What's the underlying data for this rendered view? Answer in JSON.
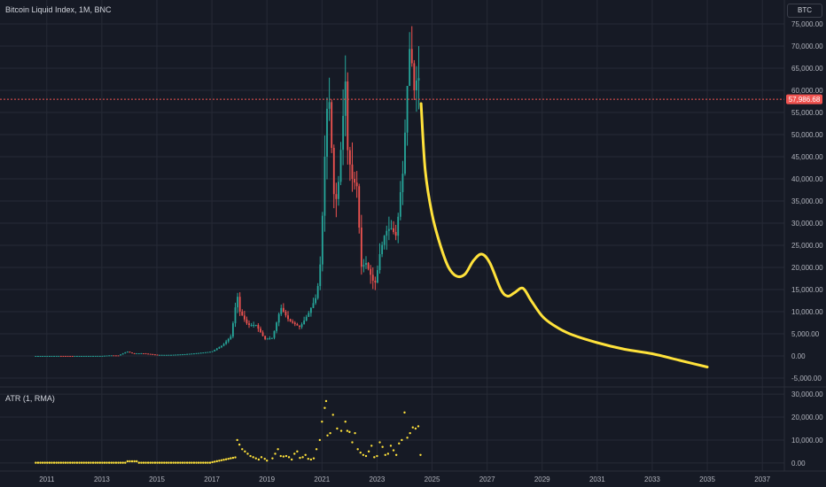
{
  "header": {
    "symbol_title": "Bitcoin Liquid Index, 1M, BNC",
    "currency": "BTC"
  },
  "indicator": {
    "label": "ATR (1, RMA)"
  },
  "price_label": "57,986.68",
  "colors": {
    "background": "#161a25",
    "up": "#26a69a",
    "down": "#ef5350",
    "projection": "#ffe23b",
    "atr": "#ffe23b",
    "price_line": "#ef5350",
    "grid": "#262a36",
    "text": "#b2b5be"
  },
  "chart_data": [
    {
      "type": "candlestick",
      "title": "Bitcoin Liquid Index, 1M, BNC",
      "ylim": [
        -6000,
        76000
      ],
      "xlim": [
        2009.3,
        2037.8
      ],
      "yticks": [
        "-5,000.00",
        "0.00",
        "5,000.00",
        "10,000.00",
        "15,000.00",
        "20,000.00",
        "25,000.00",
        "30,000.00",
        "35,000.00",
        "40,000.00",
        "45,000.00",
        "50,000.00",
        "55,000.00",
        "60,000.00",
        "65,000.00",
        "70,000.00",
        "75,000.00"
      ],
      "xticks": [
        "2011",
        "2013",
        "2015",
        "2017",
        "2019",
        "2021",
        "2023",
        "2025",
        "2027",
        "2029",
        "2031",
        "2033",
        "2035",
        "2037"
      ],
      "price_keypoints": [
        [
          2010.6,
          0.1
        ],
        [
          2011.4,
          15
        ],
        [
          2011.9,
          5
        ],
        [
          2012.5,
          10
        ],
        [
          2013.0,
          20
        ],
        [
          2013.3,
          140
        ],
        [
          2013.6,
          110
        ],
        [
          2013.92,
          1000
        ],
        [
          2014.1,
          600
        ],
        [
          2014.5,
          600
        ],
        [
          2015.0,
          250
        ],
        [
          2015.5,
          250
        ],
        [
          2016.0,
          400
        ],
        [
          2016.5,
          650
        ],
        [
          2017.0,
          1000
        ],
        [
          2017.4,
          2500
        ],
        [
          2017.7,
          4500
        ],
        [
          2017.92,
          14000
        ],
        [
          2018.0,
          10200
        ],
        [
          2018.3,
          7000
        ],
        [
          2018.6,
          7000
        ],
        [
          2018.92,
          3800
        ],
        [
          2019.2,
          4100
        ],
        [
          2019.5,
          11000
        ],
        [
          2019.8,
          8000
        ],
        [
          2020.2,
          6500
        ],
        [
          2020.5,
          9500
        ],
        [
          2020.8,
          13500
        ],
        [
          2020.92,
          19000
        ],
        [
          2021.0,
          29000
        ],
        [
          2021.1,
          45000
        ],
        [
          2021.2,
          58000
        ],
        [
          2021.3,
          57000
        ],
        [
          2021.4,
          37000
        ],
        [
          2021.55,
          35000
        ],
        [
          2021.7,
          48000
        ],
        [
          2021.85,
          62000
        ],
        [
          2021.92,
          47000
        ],
        [
          2022.1,
          40000
        ],
        [
          2022.3,
          38000
        ],
        [
          2022.4,
          20000
        ],
        [
          2022.6,
          21000
        ],
        [
          2022.85,
          17000
        ],
        [
          2022.95,
          16500
        ],
        [
          2023.1,
          23000
        ],
        [
          2023.3,
          28000
        ],
        [
          2023.5,
          29000
        ],
        [
          2023.7,
          27000
        ],
        [
          2023.85,
          37000
        ],
        [
          2023.95,
          42000
        ],
        [
          2024.1,
          61000
        ],
        [
          2024.2,
          71000
        ],
        [
          2024.35,
          60000
        ],
        [
          2024.5,
          64000
        ],
        [
          2024.58,
          57986.68
        ]
      ],
      "projection_points": [
        [
          2024.6,
          57000
        ],
        [
          2024.75,
          42000
        ],
        [
          2025.0,
          32000
        ],
        [
          2025.3,
          25000
        ],
        [
          2025.6,
          20000
        ],
        [
          2025.9,
          18000
        ],
        [
          2026.2,
          18500
        ],
        [
          2026.5,
          21500
        ],
        [
          2026.8,
          23000
        ],
        [
          2027.1,
          21000
        ],
        [
          2027.5,
          15000
        ],
        [
          2027.75,
          13500
        ],
        [
          2028.0,
          14300
        ],
        [
          2028.3,
          15300
        ],
        [
          2028.6,
          12500
        ],
        [
          2029.0,
          9000
        ],
        [
          2029.4,
          7000
        ],
        [
          2030.0,
          5000
        ],
        [
          2031.0,
          3000
        ],
        [
          2032.0,
          1500
        ],
        [
          2033.0,
          500
        ],
        [
          2034.0,
          -1000
        ],
        [
          2035.0,
          -2500
        ]
      ],
      "last_price": 57986.68
    },
    {
      "type": "scatter",
      "title": "ATR (1, RMA)",
      "ylim": [
        -2000,
        32000
      ],
      "yticks": [
        "0.00",
        "10,000.00",
        "20,000.00",
        "30,000.00"
      ],
      "points": [
        [
          2017.92,
          10000
        ],
        [
          2018.0,
          8000
        ],
        [
          2018.1,
          6000
        ],
        [
          2018.2,
          5000
        ],
        [
          2018.3,
          4000
        ],
        [
          2018.4,
          3000
        ],
        [
          2018.5,
          2500
        ],
        [
          2018.6,
          2000
        ],
        [
          2018.7,
          1500
        ],
        [
          2018.8,
          2500
        ],
        [
          2018.92,
          1800
        ],
        [
          2019.0,
          1000
        ],
        [
          2019.2,
          2000
        ],
        [
          2019.3,
          4000
        ],
        [
          2019.4,
          6000
        ],
        [
          2019.5,
          3000
        ],
        [
          2019.6,
          2800
        ],
        [
          2019.7,
          3000
        ],
        [
          2019.8,
          2500
        ],
        [
          2019.9,
          1500
        ],
        [
          2020.0,
          4000
        ],
        [
          2020.1,
          5000
        ],
        [
          2020.2,
          2200
        ],
        [
          2020.3,
          2500
        ],
        [
          2020.4,
          3500
        ],
        [
          2020.5,
          1800
        ],
        [
          2020.6,
          1500
        ],
        [
          2020.7,
          2000
        ],
        [
          2020.8,
          6000
        ],
        [
          2020.92,
          10000
        ],
        [
          2021.0,
          18000
        ],
        [
          2021.1,
          24000
        ],
        [
          2021.15,
          27000
        ],
        [
          2021.2,
          12000
        ],
        [
          2021.3,
          13000
        ],
        [
          2021.4,
          21000
        ],
        [
          2021.55,
          15000
        ],
        [
          2021.7,
          14000
        ],
        [
          2021.85,
          18000
        ],
        [
          2021.92,
          14000
        ],
        [
          2022.0,
          13500
        ],
        [
          2022.1,
          9000
        ],
        [
          2022.2,
          13000
        ],
        [
          2022.3,
          6000
        ],
        [
          2022.4,
          4500
        ],
        [
          2022.5,
          3500
        ],
        [
          2022.6,
          3000
        ],
        [
          2022.7,
          5000
        ],
        [
          2022.8,
          7500
        ],
        [
          2022.9,
          2500
        ],
        [
          2023.0,
          3000
        ],
        [
          2023.1,
          9000
        ],
        [
          2023.2,
          7000
        ],
        [
          2023.3,
          3500
        ],
        [
          2023.4,
          4000
        ],
        [
          2023.5,
          7500
        ],
        [
          2023.6,
          5500
        ],
        [
          2023.7,
          3500
        ],
        [
          2023.8,
          8500
        ],
        [
          2023.9,
          10000
        ],
        [
          2024.0,
          22000
        ],
        [
          2024.1,
          11000
        ],
        [
          2024.2,
          13000
        ],
        [
          2024.3,
          15500
        ],
        [
          2024.4,
          15000
        ],
        [
          2024.5,
          16000
        ],
        [
          2024.58,
          3500
        ]
      ]
    }
  ]
}
